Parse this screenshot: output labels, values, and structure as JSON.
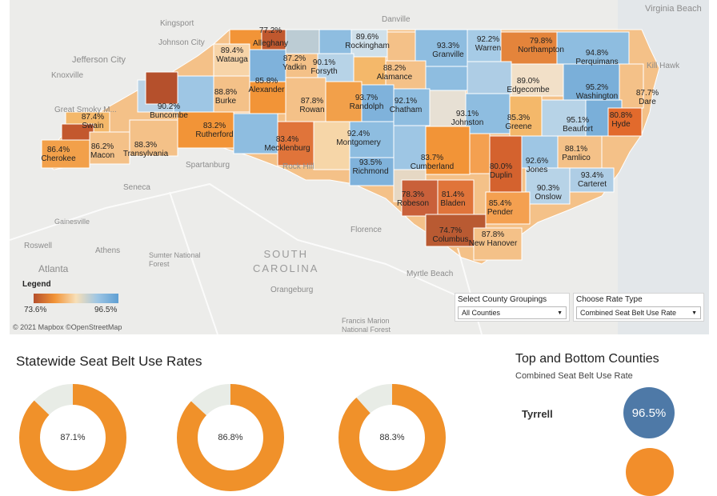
{
  "map": {
    "background_labels": [
      {
        "text": "Danville",
        "cls": ""
      },
      {
        "text": "Virginia Beach",
        "cls": ""
      },
      {
        "text": "Kingsport",
        "cls": ""
      },
      {
        "text": "Johnson City",
        "cls": ""
      },
      {
        "text": "Jefferson City",
        "cls": ""
      },
      {
        "text": "Knoxville",
        "cls": ""
      },
      {
        "text": "Great Smoky M...",
        "cls": ""
      },
      {
        "text": "Kill Hawk",
        "cls": ""
      },
      {
        "text": "Spartanburg",
        "cls": ""
      },
      {
        "text": "Seneca",
        "cls": ""
      },
      {
        "text": "Gainesville",
        "cls": ""
      },
      {
        "text": "Athens",
        "cls": ""
      },
      {
        "text": "Roswell",
        "cls": ""
      },
      {
        "text": "Atlanta",
        "cls": ""
      },
      {
        "text": "Sumter National\nForest",
        "cls": ""
      },
      {
        "text": "SOUTH\nCAROLINA",
        "cls": "state"
      },
      {
        "text": "Florence",
        "cls": ""
      },
      {
        "text": "Orangeburg",
        "cls": ""
      },
      {
        "text": "Myrtle Beach",
        "cls": ""
      },
      {
        "text": "Francis Marion\nNational Forest",
        "cls": ""
      },
      {
        "text": "Rock Hill",
        "cls": ""
      }
    ],
    "counties": [
      {
        "name": "",
        "rate": "77.2%"
      },
      {
        "name": "Alleghany",
        "rate": ""
      },
      {
        "name": "Rockingham",
        "rate": "89.6%"
      },
      {
        "name": "Granville",
        "rate": "93.3%"
      },
      {
        "name": "Warren",
        "rate": "92.2%"
      },
      {
        "name": "Northampton",
        "rate": "79.8%"
      },
      {
        "name": "Watauga",
        "rate": "89.4%"
      },
      {
        "name": "Yadkin",
        "rate": "87.2%"
      },
      {
        "name": "Forsyth",
        "rate": "90.1%"
      },
      {
        "name": "Alamance",
        "rate": "88.2%"
      },
      {
        "name": "Perquimans",
        "rate": "94.8%"
      },
      {
        "name": "Alexander",
        "rate": "85.8%"
      },
      {
        "name": "Burke",
        "rate": "88.8%"
      },
      {
        "name": "Rowan",
        "rate": "87.8%"
      },
      {
        "name": "Randolph",
        "rate": "93.7%"
      },
      {
        "name": "Chatham",
        "rate": "92.1%"
      },
      {
        "name": "Edgecombe",
        "rate": "89.0%"
      },
      {
        "name": "Washington",
        "rate": "95.2%"
      },
      {
        "name": "Dare",
        "rate": "87.7%"
      },
      {
        "name": "Buncombe",
        "rate": "90.2%"
      },
      {
        "name": "Swain",
        "rate": "87.4%"
      },
      {
        "name": "Rutherford",
        "rate": "83.2%"
      },
      {
        "name": "Johnston",
        "rate": "93.1%"
      },
      {
        "name": "Greene",
        "rate": "85.3%"
      },
      {
        "name": "Beaufort",
        "rate": "95.1%"
      },
      {
        "name": "Hyde",
        "rate": "80.8%"
      },
      {
        "name": "Cherokee",
        "rate": "86.4%"
      },
      {
        "name": "Macon",
        "rate": "86.2%"
      },
      {
        "name": "Transylvania",
        "rate": "88.3%"
      },
      {
        "name": "Mecklenburg",
        "rate": "83.4%"
      },
      {
        "name": "Montgomery",
        "rate": "92.4%"
      },
      {
        "name": "Richmond",
        "rate": "93.5%"
      },
      {
        "name": "Cumberland",
        "rate": "83.7%"
      },
      {
        "name": "Duplin",
        "rate": "80.0%"
      },
      {
        "name": "Jones",
        "rate": "92.6%"
      },
      {
        "name": "Pamlico",
        "rate": "88.1%"
      },
      {
        "name": "Onslow",
        "rate": "90.3%"
      },
      {
        "name": "Carteret",
        "rate": "93.4%"
      },
      {
        "name": "Robeson",
        "rate": "78.3%"
      },
      {
        "name": "Bladen",
        "rate": "81.4%"
      },
      {
        "name": "Pender",
        "rate": "85.4%"
      },
      {
        "name": "Columbus",
        "rate": "74.7%"
      },
      {
        "name": "New Hanover",
        "rate": "87.8%"
      }
    ],
    "legend": {
      "title": "Legend",
      "min": "73.6%",
      "max": "96.5%"
    },
    "attribution": "© 2021 Mapbox ©OpenStreetMap",
    "colors": {
      "low": "#b5502c",
      "mid_low": "#f29437",
      "mid": "#f7dfb8",
      "mid_high": "#9ec6e4",
      "high": "#5f9fd3"
    }
  },
  "filters": {
    "grouping": {
      "label": "Select County Groupings",
      "value": "All Counties"
    },
    "rate_type": {
      "label": "Choose Rate Type",
      "value": "Combined Seat Belt Use Rate"
    }
  },
  "statewide": {
    "title": "Statewide Seat Belt Use Rates",
    "donuts": [
      {
        "value": "87.1%",
        "fraction": 0.871
      },
      {
        "value": "86.8%",
        "fraction": 0.868
      },
      {
        "value": "88.3%",
        "fraction": 0.883
      }
    ],
    "colors": {
      "fill": "#f0912a",
      "track": "#e8ece6"
    }
  },
  "top_bottom": {
    "title": "Top and Bottom Counties",
    "subtitle": "Combined Seat Belt Use Rate",
    "top": {
      "name": "Tyrrell",
      "rate": "96.5%",
      "color": "#4e79a7"
    },
    "bottom": {
      "color": "#f28e2b"
    }
  }
}
